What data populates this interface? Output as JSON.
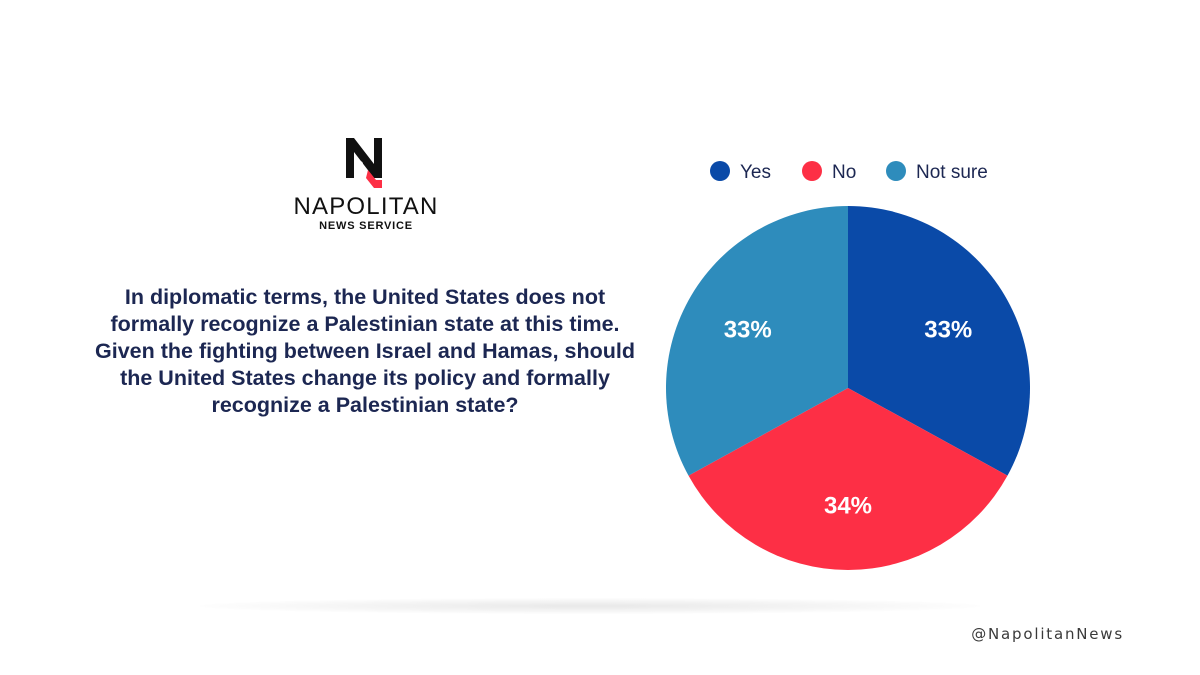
{
  "logo": {
    "name": "NAPOLITAN",
    "sub": "NEWS SERVICE"
  },
  "question": "In diplomatic terms, the United States does not formally recognize a Palestinian state at this time. Given the fighting between Israel and Hamas, should the United States change its policy and formally recognize a Palestinian state?",
  "handle": "@NapolitanNews",
  "colors": {
    "yes": "#0a4aa8",
    "no": "#fd2f45",
    "not_sure": "#2e8cbc",
    "text_dark": "#1c2752"
  },
  "chart_data": {
    "type": "pie",
    "categories": [
      "Yes",
      "No",
      "Not sure"
    ],
    "values": [
      33,
      34,
      33
    ],
    "labels": [
      "33%",
      "34%",
      "33%"
    ],
    "colors": [
      "#0a4aa8",
      "#fd2f45",
      "#2e8cbc"
    ],
    "start_angle_deg": 0,
    "direction": "clockwise",
    "legend": {
      "placement": "top",
      "entries": [
        "Yes",
        "No",
        "Not sure"
      ]
    }
  }
}
